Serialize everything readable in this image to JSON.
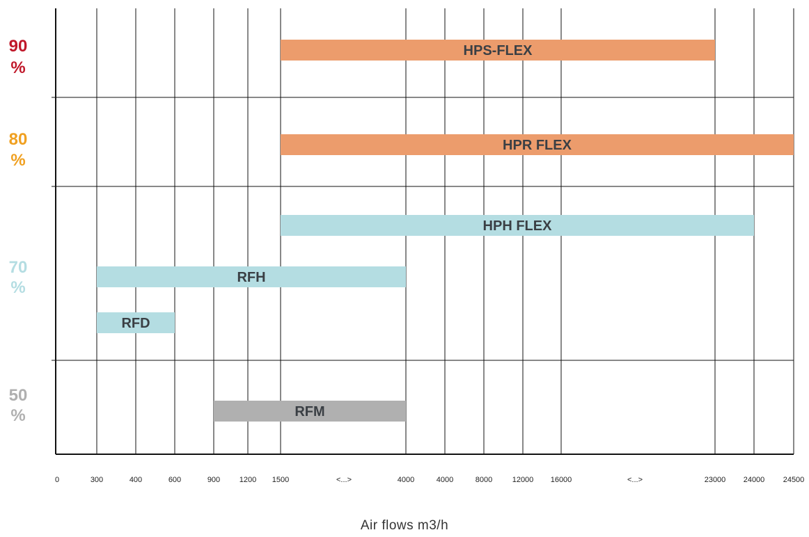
{
  "chart_data": {
    "type": "bar",
    "orientation": "horizontal-range",
    "xlabel": "Air flows m3/h",
    "x_ticks": [
      "0",
      "300",
      "400",
      "600",
      "900",
      "1200",
      "1500",
      "<...>",
      "4000",
      "4000",
      "8000",
      "12000",
      "16000",
      "<...>",
      "23000",
      "24000",
      "24500"
    ],
    "y_bands": [
      {
        "label": "90\n%",
        "color": "#c0182a"
      },
      {
        "label": "80\n%",
        "color": "#f0a020"
      },
      {
        "label": "70\n%",
        "color": "#b4dde2"
      },
      {
        "label": "50\n%",
        "color": "#b0b0b0"
      }
    ],
    "bars": [
      {
        "name": "HPS-FLEX",
        "band": "90 %",
        "start_tick": 6,
        "end_tick": 14,
        "color": "#ec9c6c"
      },
      {
        "name": "HPR FLEX",
        "band": "80 %",
        "start_tick": 6,
        "end_tick": 16,
        "color": "#ec9c6c"
      },
      {
        "name": "HPH FLEX",
        "band": "70 %",
        "start_tick": 6,
        "end_tick": 15,
        "color": "#b4dde2"
      },
      {
        "name": "RFH",
        "band": "70 %",
        "start_tick": 1,
        "end_tick": 8,
        "color": "#b4dde2"
      },
      {
        "name": "RFD",
        "band": "70 %",
        "start_tick": 1,
        "end_tick": 3,
        "color": "#b4dde2"
      },
      {
        "name": "RFM",
        "band": "50 %",
        "start_tick": 4,
        "end_tick": 8,
        "color": "#b0b0b0"
      }
    ],
    "grid": true
  }
}
